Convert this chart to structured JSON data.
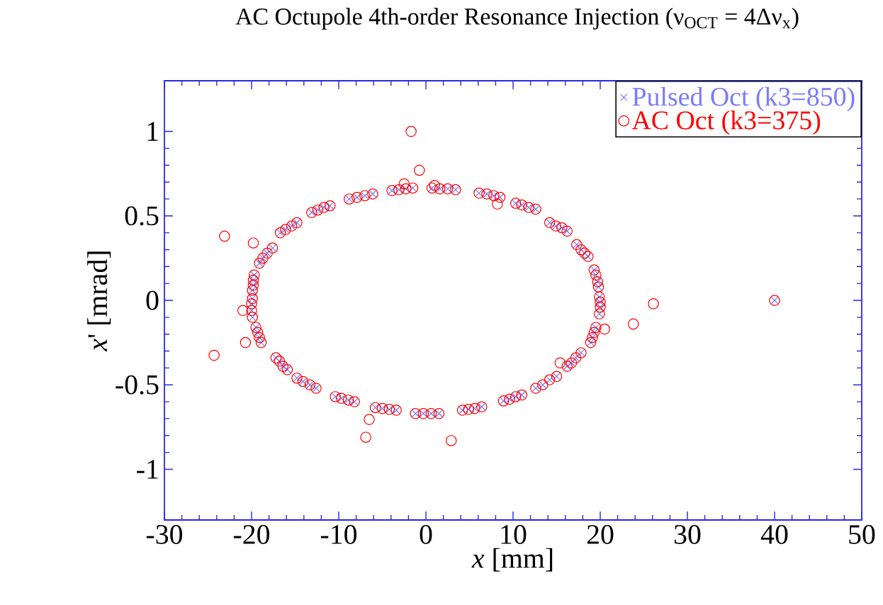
{
  "chart_data": {
    "type": "scatter",
    "title": "AC Octupole 4th-order Resonance Injection (ν$_{OCT}$ = 4Δν$_{x}$)",
    "xlabel": "*x* [mm]",
    "ylabel": "*x*' [mrad]",
    "xlim": [
      -30,
      50
    ],
    "ylim": [
      -1.3,
      1.3
    ],
    "xticks": [
      -30,
      -20,
      -10,
      0,
      10,
      20,
      30,
      40,
      50
    ],
    "yticks": [
      -1,
      -0.5,
      0,
      0.5,
      1
    ],
    "grid": false,
    "legend": "top right",
    "series": [
      {
        "name": "Pulsed Oct (k3=850)",
        "color": "#7a7aff",
        "marker": "cross",
        "x": [
          -8.8,
          -7.9,
          -7.0,
          -6.1,
          -3.9,
          -3.1,
          -2.3,
          -1.5,
          0.7,
          1.6,
          2.5,
          3.4,
          6.1,
          7.0,
          7.8,
          8.5,
          10.3,
          11.0,
          11.8,
          12.6,
          14.2,
          14.9,
          15.6,
          16.2,
          17.3,
          17.8,
          18.2,
          18.6,
          19.3,
          19.5,
          19.7,
          19.8,
          19.9,
          20.0,
          20.0,
          19.9,
          19.5,
          19.3,
          19.1,
          18.9,
          17.8,
          17.2,
          16.7,
          16.2,
          15.0,
          14.2,
          13.4,
          12.6,
          11.0,
          10.3,
          9.6,
          8.9,
          6.4,
          5.6,
          4.9,
          4.2,
          1.5,
          0.6,
          -0.3,
          -1.2,
          -3.4,
          -4.2,
          -5.0,
          -5.8,
          -8.2,
          -8.9,
          -9.7,
          -10.4,
          -12.6,
          -13.3,
          -14.1,
          -14.8,
          -15.9,
          -16.4,
          -16.8,
          -17.2,
          -18.9,
          -19.1,
          -19.3,
          -19.5,
          -19.9,
          -20.0,
          -20.0,
          -19.9,
          -19.9,
          -19.8,
          -19.8,
          -19.7,
          -19.1,
          -18.7,
          -18.2,
          -17.6,
          -16.7,
          -16.1,
          -15.4,
          -14.8,
          -13.1,
          -12.4,
          -11.7,
          -11.0,
          40
        ],
        "values": [
          0.6,
          0.61,
          0.62,
          0.63,
          0.65,
          0.655,
          0.66,
          0.665,
          0.665,
          0.66,
          0.66,
          0.655,
          0.635,
          0.63,
          0.62,
          0.61,
          0.575,
          0.565,
          0.55,
          0.54,
          0.46,
          0.44,
          0.43,
          0.41,
          0.33,
          0.3,
          0.28,
          0.26,
          0.18,
          0.15,
          0.11,
          0.08,
          0.02,
          -0.01,
          -0.04,
          -0.08,
          -0.16,
          -0.19,
          -0.22,
          -0.25,
          -0.31,
          -0.34,
          -0.37,
          -0.39,
          -0.45,
          -0.47,
          -0.5,
          -0.52,
          -0.56,
          -0.57,
          -0.585,
          -0.595,
          -0.63,
          -0.64,
          -0.645,
          -0.65,
          -0.67,
          -0.67,
          -0.67,
          -0.67,
          -0.65,
          -0.645,
          -0.64,
          -0.635,
          -0.6,
          -0.59,
          -0.58,
          -0.57,
          -0.52,
          -0.5,
          -0.48,
          -0.46,
          -0.41,
          -0.39,
          -0.36,
          -0.34,
          -0.25,
          -0.22,
          -0.19,
          -0.16,
          -0.1,
          -0.06,
          -0.02,
          0.01,
          0.06,
          0.09,
          0.12,
          0.15,
          0.22,
          0.25,
          0.28,
          0.31,
          0.4,
          0.42,
          0.44,
          0.46,
          0.52,
          0.535,
          0.55,
          0.56,
          0
        ]
      },
      {
        "name": "AC Oct (k3=375)",
        "color": "#ff0000",
        "marker": "circle",
        "x": [
          -8.8,
          -7.9,
          -7.0,
          -6.1,
          -3.9,
          -3.1,
          -2.3,
          -1.5,
          0.7,
          1.6,
          2.5,
          3.4,
          6.1,
          7.0,
          7.8,
          8.5,
          10.3,
          11.0,
          11.8,
          12.6,
          14.2,
          14.9,
          15.6,
          16.2,
          17.3,
          17.8,
          18.2,
          18.6,
          19.3,
          19.5,
          19.7,
          19.8,
          19.9,
          20.0,
          20.0,
          19.9,
          19.5,
          19.3,
          19.1,
          18.9,
          17.8,
          17.2,
          16.7,
          16.2,
          15.0,
          14.2,
          13.4,
          12.6,
          11.0,
          10.3,
          9.6,
          8.9,
          6.4,
          5.6,
          4.9,
          4.2,
          1.5,
          0.6,
          -0.3,
          -1.2,
          -3.4,
          -4.2,
          -5.0,
          -5.8,
          -8.2,
          -8.9,
          -9.7,
          -10.4,
          -12.6,
          -13.3,
          -14.1,
          -14.8,
          -15.9,
          -16.4,
          -16.8,
          -17.2,
          -18.9,
          -19.1,
          -19.3,
          -19.5,
          -19.9,
          -20.0,
          -20.0,
          -19.9,
          -19.9,
          -19.8,
          -19.8,
          -19.7,
          -19.1,
          -18.7,
          -18.2,
          -17.6,
          -16.7,
          -16.1,
          -15.4,
          -14.8,
          -13.1,
          -12.4,
          -11.7,
          -11.0,
          40,
          -1.7,
          -0.75,
          -2.5,
          1.0,
          8.2,
          -23.1,
          -19.8,
          -21.0,
          26.1,
          23.8,
          20.5,
          -24.3,
          -20.7,
          -6.5,
          -6.9,
          2.9,
          15.4
        ],
        "values": [
          0.6,
          0.61,
          0.62,
          0.63,
          0.65,
          0.655,
          0.66,
          0.665,
          0.665,
          0.66,
          0.66,
          0.655,
          0.635,
          0.63,
          0.62,
          0.61,
          0.575,
          0.565,
          0.55,
          0.54,
          0.46,
          0.44,
          0.43,
          0.41,
          0.33,
          0.3,
          0.28,
          0.26,
          0.18,
          0.15,
          0.11,
          0.08,
          0.02,
          -0.01,
          -0.04,
          -0.08,
          -0.16,
          -0.19,
          -0.22,
          -0.25,
          -0.31,
          -0.34,
          -0.37,
          -0.39,
          -0.45,
          -0.47,
          -0.5,
          -0.52,
          -0.56,
          -0.57,
          -0.585,
          -0.595,
          -0.63,
          -0.64,
          -0.645,
          -0.65,
          -0.67,
          -0.67,
          -0.67,
          -0.67,
          -0.65,
          -0.645,
          -0.64,
          -0.635,
          -0.6,
          -0.59,
          -0.58,
          -0.57,
          -0.52,
          -0.5,
          -0.48,
          -0.46,
          -0.41,
          -0.39,
          -0.36,
          -0.34,
          -0.25,
          -0.22,
          -0.19,
          -0.16,
          -0.1,
          -0.06,
          -0.02,
          0.01,
          0.06,
          0.09,
          0.12,
          0.15,
          0.22,
          0.25,
          0.28,
          0.31,
          0.4,
          0.42,
          0.44,
          0.46,
          0.52,
          0.535,
          0.55,
          0.56,
          0,
          1.0,
          0.77,
          0.69,
          0.68,
          0.57,
          0.38,
          0.34,
          -0.06,
          -0.02,
          -0.14,
          -0.17,
          -0.325,
          -0.25,
          -0.705,
          -0.81,
          -0.83,
          -0.37
        ]
      }
    ]
  }
}
